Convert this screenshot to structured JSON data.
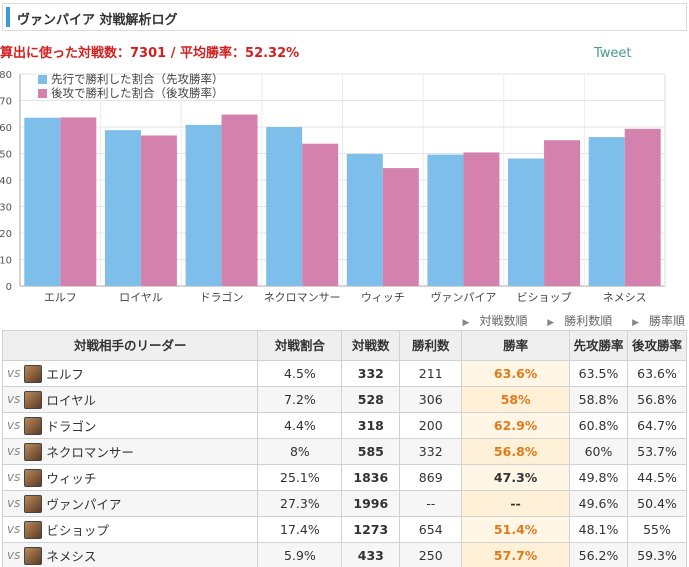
{
  "header": {
    "title": "ヴァンパイア 対戦解析ログ"
  },
  "summary": {
    "label_games": "算出に使った対戦数：",
    "games": "7301",
    "sep": " / ",
    "label_rate": "平均勝率：",
    "rate": "52.32%"
  },
  "tweet": "Tweet",
  "colors": {
    "first": "#7dbfea",
    "second": "#d581ae",
    "accent": "#e07a1b",
    "header_bar": "#3b9bd6"
  },
  "chart_data": {
    "type": "bar",
    "categories": [
      "エルフ",
      "ロイヤル",
      "ドラゴン",
      "ネクロマンサー",
      "ウィッチ",
      "ヴァンパイア",
      "ビショップ",
      "ネメシス"
    ],
    "series": [
      {
        "name": "先行で勝利した割合（先攻勝率）",
        "values": [
          63.5,
          58.8,
          60.8,
          60,
          49.8,
          49.6,
          48.1,
          56.2
        ]
      },
      {
        "name": "後攻で勝利した割合（後攻勝率）",
        "values": [
          63.6,
          56.8,
          64.7,
          53.7,
          44.5,
          50.4,
          55,
          59.3
        ]
      }
    ],
    "yticks": [
      0,
      10,
      20,
      30,
      40,
      50,
      60,
      70,
      80
    ],
    "ylim": [
      0,
      80
    ],
    "grid": true,
    "legend": "top-left"
  },
  "sort_links": [
    "対戦数順",
    "勝利数順",
    "勝率順"
  ],
  "table": {
    "headers": [
      "対戦相手のリーダー",
      "対戦割合",
      "対戦数",
      "勝利数",
      "勝率",
      "先攻勝率",
      "後攻勝率"
    ],
    "vs": "vs",
    "rows": [
      {
        "leader": "エルフ",
        "share": "4.5%",
        "games": "332",
        "wins": "211",
        "rate": "63.6%",
        "first": "63.5%",
        "second": "63.6%"
      },
      {
        "leader": "ロイヤル",
        "share": "7.2%",
        "games": "528",
        "wins": "306",
        "rate": "58%",
        "first": "58.8%",
        "second": "56.8%"
      },
      {
        "leader": "ドラゴン",
        "share": "4.4%",
        "games": "318",
        "wins": "200",
        "rate": "62.9%",
        "first": "60.8%",
        "second": "64.7%"
      },
      {
        "leader": "ネクロマンサー",
        "share": "8%",
        "games": "585",
        "wins": "332",
        "rate": "56.8%",
        "first": "60%",
        "second": "53.7%"
      },
      {
        "leader": "ウィッチ",
        "share": "25.1%",
        "games": "1836",
        "wins": "869",
        "rate": "47.3%",
        "first": "49.8%",
        "second": "44.5%"
      },
      {
        "leader": "ヴァンパイア",
        "share": "27.3%",
        "games": "1996",
        "wins": "--",
        "rate": "--",
        "first": "49.6%",
        "second": "50.4%"
      },
      {
        "leader": "ビショップ",
        "share": "17.4%",
        "games": "1273",
        "wins": "654",
        "rate": "51.4%",
        "first": "48.1%",
        "second": "55%"
      },
      {
        "leader": "ネメシス",
        "share": "5.9%",
        "games": "433",
        "wins": "250",
        "rate": "57.7%",
        "first": "56.2%",
        "second": "59.3%"
      }
    ]
  }
}
